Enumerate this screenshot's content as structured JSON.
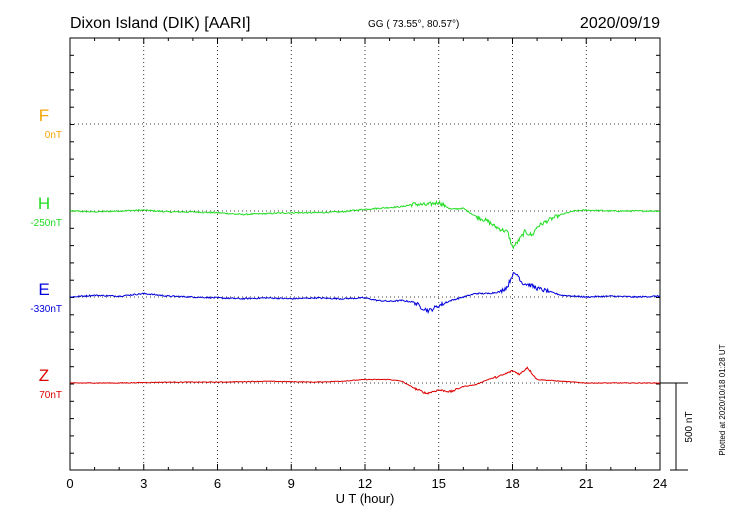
{
  "header": {
    "station": "Dixon Island (DIK)  [AARI]",
    "coords": "GG ( 73.55°,  80.57°)",
    "date": "2020/09/19"
  },
  "footer": {
    "plotted": "Plotted at 2020/10/18 01:28 UT"
  },
  "chart_data": {
    "type": "line",
    "title": "Dixon Island (DIK)  [AARI]",
    "xlabel": "U T (hour)",
    "xlim": [
      0,
      24
    ],
    "xticks": [
      0,
      3,
      6,
      9,
      12,
      15,
      18,
      21,
      24
    ],
    "grid": true,
    "scale_bar": {
      "label": "500 nT",
      "value_nT": 500
    },
    "channels": [
      {
        "name": "F",
        "baseline": "0nT",
        "color": "#f5a500",
        "values": []
      },
      {
        "name": "H",
        "baseline": "-250nT",
        "color": "#22dd22",
        "x": [
          0,
          1,
          2,
          3,
          4,
          5,
          6,
          7,
          8,
          9,
          10,
          11,
          12,
          12.5,
          13,
          13.5,
          14,
          14.5,
          15,
          15.5,
          16,
          16.5,
          17,
          17.3,
          17.6,
          17.8,
          18,
          18.2,
          18.5,
          18.8,
          19,
          19.5,
          20,
          20.5,
          21,
          22,
          23,
          24
        ],
        "values": [
          0,
          -5,
          0,
          5,
          -5,
          -5,
          -10,
          -20,
          -15,
          -10,
          -10,
          -5,
          10,
          15,
          20,
          25,
          40,
          35,
          50,
          10,
          15,
          -30,
          -60,
          -90,
          -110,
          -120,
          -210,
          -180,
          -120,
          -140,
          -90,
          -50,
          -20,
          0,
          5,
          0,
          0,
          0
        ]
      },
      {
        "name": "E",
        "baseline": "-330nT",
        "color": "#0000dd",
        "x": [
          0,
          1,
          2,
          3,
          4,
          5,
          6,
          7,
          8,
          9,
          10,
          11,
          12,
          12.5,
          13,
          13.5,
          14,
          14.3,
          14.6,
          15,
          15.5,
          16,
          16.5,
          17,
          17.5,
          17.8,
          18,
          18.2,
          18.4,
          18.7,
          19,
          19.5,
          20,
          21,
          22,
          23,
          24
        ],
        "values": [
          0,
          10,
          5,
          20,
          5,
          0,
          -5,
          -10,
          -5,
          -10,
          -5,
          -10,
          -5,
          -20,
          -25,
          -20,
          -30,
          -60,
          -80,
          -50,
          -20,
          0,
          20,
          20,
          30,
          60,
          130,
          130,
          80,
          70,
          50,
          30,
          10,
          0,
          5,
          0,
          5
        ]
      },
      {
        "name": "Z",
        "baseline": "70nT",
        "color": "#dd0000",
        "x": [
          0,
          2,
          4,
          6,
          8,
          10,
          11,
          12,
          13,
          13.5,
          14,
          14.5,
          15,
          15.5,
          16,
          16.5,
          17,
          17.5,
          18,
          18.3,
          18.6,
          19,
          20,
          21,
          22,
          24
        ],
        "values": [
          0,
          0,
          5,
          5,
          10,
          5,
          10,
          20,
          20,
          10,
          -30,
          -60,
          -40,
          -50,
          -20,
          -10,
          20,
          40,
          70,
          50,
          90,
          20,
          10,
          0,
          0,
          0
        ]
      }
    ]
  }
}
